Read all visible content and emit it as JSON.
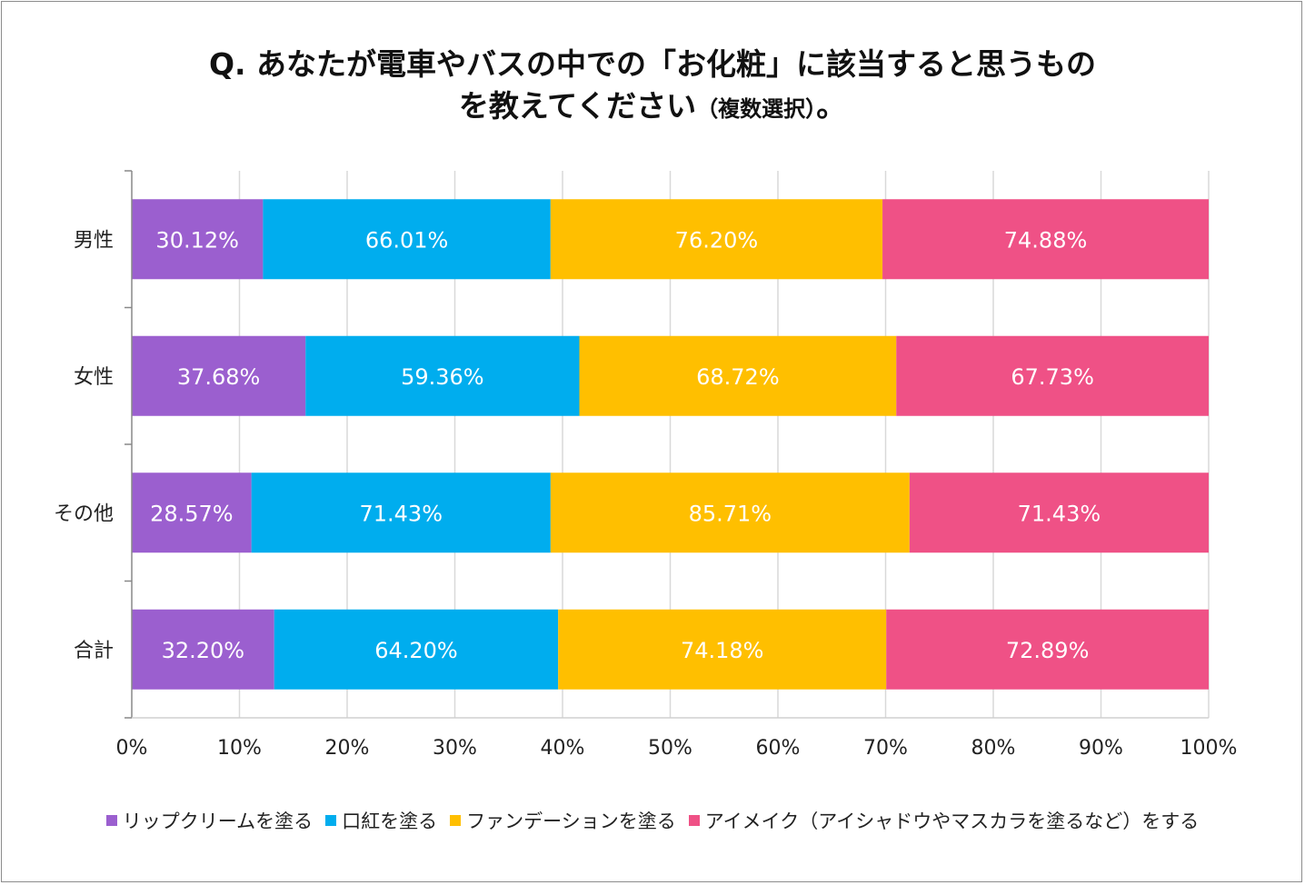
{
  "title": {
    "line1": "Q.  あなたが電車やバスの中での「お化粧」に該当すると思うもの",
    "line2": "を教えてください",
    "line2_small": "（複数選択）",
    "line2_end": "。"
  },
  "chart_data": {
    "type": "bar",
    "orientation": "horizontal",
    "stacked": "percent",
    "title": "Q. あなたが電車やバスの中での「お化粧」に該当すると思うものを教えてください（複数選択）。",
    "xlabel": "",
    "ylabel": "",
    "xlim": [
      0,
      100
    ],
    "x_ticks": [
      "0%",
      "10%",
      "20%",
      "30%",
      "40%",
      "50%",
      "60%",
      "70%",
      "80%",
      "90%",
      "100%"
    ],
    "grid": "vertical",
    "legend_position": "bottom",
    "categories": [
      "男性",
      "女性",
      "その他",
      "合計"
    ],
    "series": [
      {
        "name": "リップクリームを塗る",
        "color": "#9b5fcf",
        "values": [
          30.12,
          37.68,
          28.57,
          32.2
        ],
        "labels": [
          "30.12%",
          "37.68%",
          "28.57%",
          "32.20%"
        ]
      },
      {
        "name": "口紅を塗る",
        "color": "#00adee",
        "values": [
          66.01,
          59.36,
          71.43,
          64.2
        ],
        "labels": [
          "66.01%",
          "59.36%",
          "71.43%",
          "64.20%"
        ]
      },
      {
        "name": "ファンデーションを塗る",
        "color": "#ffbf00",
        "values": [
          76.2,
          68.72,
          85.71,
          74.18
        ],
        "labels": [
          "76.20%",
          "68.72%",
          "85.71%",
          "74.18%"
        ]
      },
      {
        "name": "アイメイク（アイシャドウやマスカラを塗るなど）をする",
        "color": "#ef5186",
        "values": [
          74.88,
          67.73,
          71.43,
          72.89
        ],
        "labels": [
          "74.88%",
          "67.73%",
          "71.43%",
          "72.89%"
        ]
      }
    ]
  }
}
